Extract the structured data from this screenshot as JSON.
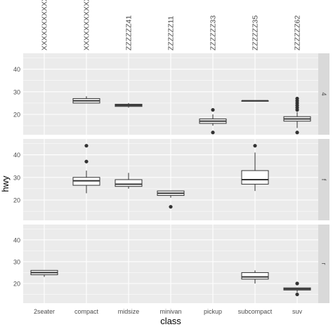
{
  "chart_data": {
    "type": "boxplot",
    "xlabel": "class",
    "ylabel": "hwy",
    "categories": [
      "2seater",
      "compact",
      "midsize",
      "minivan",
      "pickup",
      "subcompact",
      "suv"
    ],
    "top_labels": [
      "XXXXXXXXXXXXXX",
      "XXXXXXXXXXXXXX",
      "ZZZZZZ41",
      "ZZZZZZ11",
      "ZZZZZZ33",
      "ZZZZZZ35",
      "ZZZZZZ62"
    ],
    "y_ticks": [
      20,
      30,
      40
    ],
    "ylim": [
      11,
      47
    ],
    "grid": true,
    "facet_row_var": "drv",
    "facets": [
      {
        "label": "4",
        "boxes": [
          null,
          {
            "whisker_low": 25,
            "q1": 25,
            "median": 26,
            "q3": 27,
            "whisker_high": 28,
            "outliers": []
          },
          {
            "whisker_low": 23,
            "q1": 23.5,
            "median": 24,
            "q3": 24.5,
            "whisker_high": 25,
            "outliers": []
          },
          null,
          {
            "whisker_low": 15,
            "q1": 16,
            "median": 17,
            "q3": 18,
            "whisker_high": 20,
            "outliers": [
              22,
              12
            ]
          },
          {
            "whisker_low": 26,
            "q1": 26,
            "median": 26,
            "q3": 26,
            "whisker_high": 26,
            "outliers": []
          },
          {
            "whisker_low": 14,
            "q1": 17,
            "median": 18,
            "q3": 19,
            "whisker_high": 21,
            "outliers": [
              22,
              23,
              24,
              25,
              26,
              27,
              12
            ]
          }
        ]
      },
      {
        "label": "f",
        "boxes": [
          null,
          {
            "whisker_low": 23,
            "q1": 26.5,
            "median": 28.5,
            "q3": 30,
            "whisker_high": 33,
            "outliers": [
              37,
              44
            ]
          },
          {
            "whisker_low": 25,
            "q1": 26,
            "median": 27,
            "q3": 29,
            "whisker_high": 32,
            "outliers": []
          },
          {
            "whisker_low": 21,
            "q1": 22,
            "median": 23,
            "q3": 24,
            "whisker_high": 24,
            "outliers": [
              17
            ]
          },
          null,
          {
            "whisker_low": 24,
            "q1": 27,
            "median": 29,
            "q3": 33,
            "whisker_high": 41,
            "outliers": [
              44
            ]
          },
          null
        ]
      },
      {
        "label": "r",
        "boxes": [
          {
            "whisker_low": 23,
            "q1": 24,
            "median": 25,
            "q3": 26,
            "whisker_high": 26,
            "outliers": []
          },
          null,
          null,
          null,
          null,
          {
            "whisker_low": 20,
            "q1": 22,
            "median": 23,
            "q3": 25,
            "whisker_high": 26,
            "outliers": []
          },
          {
            "whisker_low": 16,
            "q1": 17,
            "median": 17.5,
            "q3": 18,
            "whisker_high": 18,
            "outliers": [
              20,
              15
            ]
          }
        ]
      }
    ]
  },
  "colors": {
    "panel_bg": "#ebebeb",
    "grid_line": "#ffffff",
    "strip_bg": "#d9d9d9",
    "box_fill": "#ffffff",
    "box_stroke": "#333333",
    "outlier": "#333333"
  }
}
